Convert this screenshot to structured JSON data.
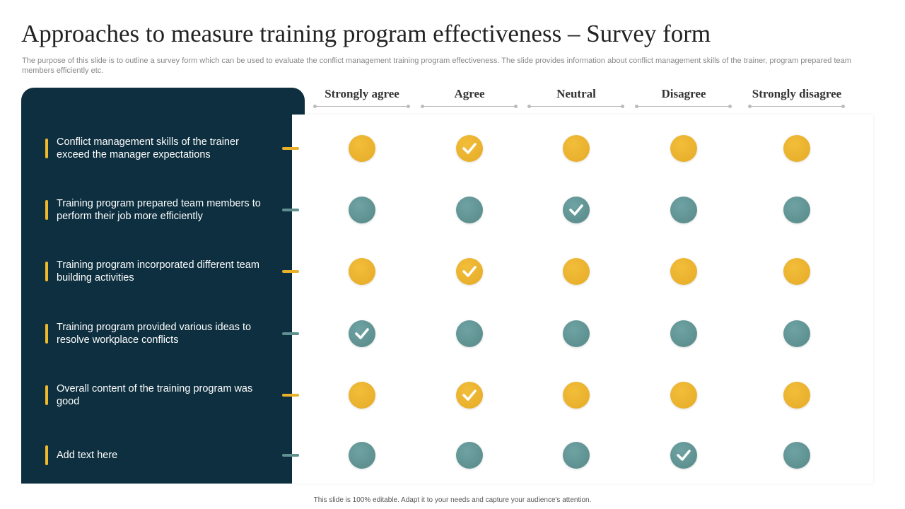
{
  "header": {
    "title": "Approaches to measure training program effectiveness – Survey form",
    "subtitle": "The purpose of this slide is to outline a survey form which can be used to evaluate the conflict management training program effectiveness. The slide provides information about conflict management skills of the trainer, program prepared team members efficiently etc."
  },
  "table": {
    "columns": [
      "Strongly agree",
      "Agree",
      "Neutral",
      "Disagree",
      "Strongly disagree"
    ],
    "rows": [
      {
        "statement": "Conflict management skills of the trainer exceed the manager expectations",
        "selected": 1
      },
      {
        "statement": "Training program prepared team members to perform their job more efficiently",
        "selected": 2
      },
      {
        "statement": "Training program incorporated different team building activities",
        "selected": 1
      },
      {
        "statement": "Training program provided various ideas to resolve workplace conflicts",
        "selected": 0
      },
      {
        "statement": "Overall content of the training program was good",
        "selected": 1
      },
      {
        "statement": "Add text here",
        "selected": 3
      }
    ]
  },
  "footer": "This slide is 100% editable. Adapt it to your needs and capture your audience's attention."
}
